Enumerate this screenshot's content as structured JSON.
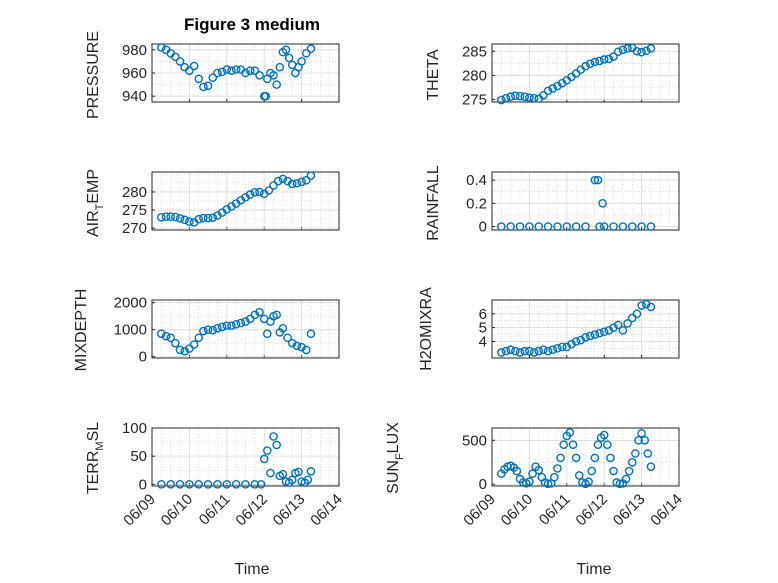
{
  "colors": {
    "marker": "#0072BD",
    "axis": "#262626"
  },
  "chart_data": [
    {
      "type": "scatter",
      "title": "Figure 3 medium",
      "ylabel": "PRESSURE",
      "xlabel": "",
      "xlim": [
        "06/09",
        "06/14"
      ],
      "ylim": [
        935,
        985
      ],
      "yticks": [
        940,
        960,
        980
      ],
      "grid": "on",
      "x": [
        "06/09 06:00",
        "06/09 09:00",
        "06/09 12:00",
        "06/09 15:00",
        "06/09 18:00",
        "06/09 21:00",
        "06/10 00:00",
        "06/10 03:00",
        "06/10 06:00",
        "06/10 09:00",
        "06/10 12:00",
        "06/10 15:00",
        "06/10 18:00",
        "06/10 21:00",
        "06/11 00:00",
        "06/11 03:00",
        "06/11 06:00",
        "06/11 09:00",
        "06/11 12:00",
        "06/11 15:00",
        "06/11 18:00",
        "06/11 21:00",
        "06/12 00:00",
        "06/12 01:00",
        "06/12 02:00",
        "06/12 04:00",
        "06/12 06:00",
        "06/12 08:00",
        "06/12 10:00",
        "06/12 12:00",
        "06/12 14:00",
        "06/12 16:00",
        "06/12 18:00",
        "06/12 20:00",
        "06/12 22:00",
        "06/13 00:00",
        "06/13 03:00",
        "06/13 06:00"
      ],
      "y": [
        982,
        980,
        977,
        974,
        970,
        965,
        962,
        966,
        955,
        948,
        949,
        956,
        960,
        961,
        963,
        962,
        963,
        963,
        960,
        962,
        962,
        958,
        940,
        940,
        955,
        960,
        958,
        950,
        965,
        978,
        980,
        973,
        967,
        960,
        965,
        970,
        977,
        981
      ]
    },
    {
      "type": "scatter",
      "title": "",
      "ylabel": "THETA",
      "xlabel": "",
      "xlim": [
        "06/09",
        "06/14"
      ],
      "ylim": [
        274.5,
        286.5
      ],
      "yticks": [
        275,
        280,
        285
      ],
      "grid": "on",
      "x": [
        "06/09 06:00",
        "06/09 09:00",
        "06/09 12:00",
        "06/09 15:00",
        "06/09 18:00",
        "06/09 21:00",
        "06/10 00:00",
        "06/10 03:00",
        "06/10 06:00",
        "06/10 09:00",
        "06/10 12:00",
        "06/10 15:00",
        "06/10 18:00",
        "06/10 21:00",
        "06/11 00:00",
        "06/11 03:00",
        "06/11 06:00",
        "06/11 09:00",
        "06/11 12:00",
        "06/11 15:00",
        "06/11 18:00",
        "06/11 21:00",
        "06/12 00:00",
        "06/12 03:00",
        "06/12 06:00",
        "06/12 09:00",
        "06/12 12:00",
        "06/12 15:00",
        "06/12 18:00",
        "06/12 21:00",
        "06/13 00:00",
        "06/13 03:00",
        "06/13 06:00"
      ],
      "y": [
        274.9,
        275.3,
        275.6,
        275.8,
        275.7,
        275.6,
        275.4,
        275.3,
        275.2,
        275.9,
        276.8,
        277.3,
        277.8,
        278.4,
        279.0,
        279.7,
        280.4,
        281.2,
        281.9,
        282.4,
        282.8,
        283.0,
        283.3,
        283.4,
        283.9,
        284.9,
        285.3,
        285.6,
        285.7,
        285.0,
        284.8,
        285.1,
        285.6
      ]
    },
    {
      "type": "scatter",
      "title": "",
      "ylabel": "AIR_TEMP",
      "xlabel": "",
      "xlim": [
        "06/09",
        "06/14"
      ],
      "ylim": [
        269.5,
        285.5
      ],
      "yticks": [
        270,
        275,
        280
      ],
      "grid": "on",
      "x": [
        "06/09 06:00",
        "06/09 09:00",
        "06/09 12:00",
        "06/09 15:00",
        "06/09 18:00",
        "06/09 21:00",
        "06/10 00:00",
        "06/10 03:00",
        "06/10 06:00",
        "06/10 09:00",
        "06/10 12:00",
        "06/10 15:00",
        "06/10 18:00",
        "06/10 21:00",
        "06/11 00:00",
        "06/11 03:00",
        "06/11 06:00",
        "06/11 09:00",
        "06/11 12:00",
        "06/11 15:00",
        "06/11 18:00",
        "06/11 21:00",
        "06/12 00:00",
        "06/12 03:00",
        "06/12 06:00",
        "06/12 09:00",
        "06/12 12:00",
        "06/12 15:00",
        "06/12 18:00",
        "06/12 21:00",
        "06/13 00:00",
        "06/13 03:00",
        "06/13 06:00"
      ],
      "y": [
        273.0,
        273.2,
        273.2,
        273.1,
        272.7,
        272.3,
        271.8,
        271.6,
        272.5,
        272.8,
        272.8,
        272.9,
        273.5,
        274.3,
        275.2,
        276.0,
        276.8,
        277.7,
        278.5,
        279.3,
        279.9,
        280.0,
        279.5,
        280.4,
        281.8,
        283.0,
        283.6,
        283.0,
        282.2,
        282.4,
        282.8,
        283.2,
        284.5
      ]
    },
    {
      "type": "scatter",
      "title": "",
      "ylabel": "RAINFALL",
      "xlabel": "",
      "xlim": [
        "06/09",
        "06/14"
      ],
      "ylim": [
        -0.03,
        0.47
      ],
      "yticks": [
        0,
        0.2,
        0.4
      ],
      "grid": "on",
      "x": [
        "06/09 06:00",
        "06/09 12:00",
        "06/09 18:00",
        "06/10 00:00",
        "06/10 06:00",
        "06/10 12:00",
        "06/10 18:00",
        "06/11 00:00",
        "06/11 06:00",
        "06/11 12:00",
        "06/11 18:00",
        "06/11 20:00",
        "06/11 21:00",
        "06/11 23:00",
        "06/12 00:00",
        "06/12 06:00",
        "06/12 12:00",
        "06/12 18:00",
        "06/13 00:00",
        "06/13 06:00"
      ],
      "y": [
        0,
        0,
        0,
        0,
        0,
        0,
        0,
        0,
        0,
        0,
        0.4,
        0.4,
        0,
        0.2,
        0,
        0,
        0,
        0,
        0,
        0
      ]
    },
    {
      "type": "scatter",
      "title": "",
      "ylabel": "MIXDEPTH",
      "xlabel": "",
      "xlim": [
        "06/09",
        "06/14"
      ],
      "ylim": [
        -50,
        2100
      ],
      "yticks": [
        0,
        1000,
        2000
      ],
      "grid": "on",
      "x": [
        "06/09 06:00",
        "06/09 09:00",
        "06/09 12:00",
        "06/09 15:00",
        "06/09 18:00",
        "06/09 21:00",
        "06/10 00:00",
        "06/10 03:00",
        "06/10 06:00",
        "06/10 09:00",
        "06/10 12:00",
        "06/10 15:00",
        "06/10 18:00",
        "06/10 21:00",
        "06/11 00:00",
        "06/11 03:00",
        "06/11 06:00",
        "06/11 09:00",
        "06/11 12:00",
        "06/11 15:00",
        "06/11 18:00",
        "06/11 21:00",
        "06/12 00:00",
        "06/12 02:00",
        "06/12 04:00",
        "06/12 06:00",
        "06/12 08:00",
        "06/12 10:00",
        "06/12 12:00",
        "06/12 15:00",
        "06/12 18:00",
        "06/12 21:00",
        "06/13 00:00",
        "06/13 03:00",
        "06/13 06:00"
      ],
      "y": [
        850,
        760,
        700,
        500,
        250,
        200,
        300,
        450,
        700,
        950,
        1000,
        980,
        1050,
        1100,
        1150,
        1150,
        1200,
        1250,
        1300,
        1400,
        1550,
        1650,
        1400,
        850,
        1300,
        1500,
        1550,
        900,
        1050,
        700,
        500,
        400,
        350,
        250,
        850
      ]
    },
    {
      "type": "scatter",
      "title": "",
      "ylabel": "H2OMIXRA",
      "xlabel": "",
      "xlim": [
        "06/09",
        "06/14"
      ],
      "ylim": [
        2.8,
        7.0
      ],
      "yticks": [
        4,
        5,
        6
      ],
      "grid": "on",
      "x": [
        "06/09 06:00",
        "06/09 09:00",
        "06/09 12:00",
        "06/09 15:00",
        "06/09 18:00",
        "06/09 21:00",
        "06/10 00:00",
        "06/10 03:00",
        "06/10 06:00",
        "06/10 09:00",
        "06/10 12:00",
        "06/10 15:00",
        "06/10 18:00",
        "06/10 21:00",
        "06/11 00:00",
        "06/11 03:00",
        "06/11 06:00",
        "06/11 09:00",
        "06/11 12:00",
        "06/11 15:00",
        "06/11 18:00",
        "06/11 21:00",
        "06/12 00:00",
        "06/12 03:00",
        "06/12 06:00",
        "06/12 09:00",
        "06/12 12:00",
        "06/12 15:00",
        "06/12 18:00",
        "06/12 21:00",
        "06/13 00:00",
        "06/13 03:00",
        "06/13 06:00"
      ],
      "y": [
        3.2,
        3.3,
        3.4,
        3.3,
        3.2,
        3.3,
        3.3,
        3.2,
        3.3,
        3.4,
        3.3,
        3.4,
        3.5,
        3.6,
        3.6,
        3.8,
        4.0,
        4.1,
        4.3,
        4.4,
        4.5,
        4.6,
        4.7,
        4.8,
        5.0,
        5.2,
        4.8,
        5.3,
        5.7,
        6.0,
        6.6,
        6.7,
        6.5
      ]
    },
    {
      "type": "scatter",
      "title": "",
      "ylabel": "TERR_MSL",
      "xlabel": "Time",
      "xlim": [
        "06/09",
        "06/14"
      ],
      "ylim": [
        -3,
        100
      ],
      "yticks": [
        0,
        50,
        100
      ],
      "grid": "on",
      "x": [
        "06/09 06:00",
        "06/09 12:00",
        "06/09 18:00",
        "06/10 00:00",
        "06/10 06:00",
        "06/10 12:00",
        "06/10 18:00",
        "06/11 00:00",
        "06/11 06:00",
        "06/11 12:00",
        "06/11 18:00",
        "06/11 22:00",
        "06/12 00:00",
        "06/12 02:00",
        "06/12 04:00",
        "06/12 06:00",
        "06/12 08:00",
        "06/12 10:00",
        "06/12 12:00",
        "06/12 14:00",
        "06/12 16:00",
        "06/12 18:00",
        "06/12 20:00",
        "06/12 22:00",
        "06/13 00:00",
        "06/13 02:00",
        "06/13 04:00",
        "06/13 06:00"
      ],
      "y": [
        0,
        0,
        0,
        0,
        0,
        0,
        0,
        0,
        0,
        0,
        0,
        0,
        45,
        60,
        20,
        85,
        70,
        15,
        18,
        5,
        3,
        8,
        20,
        22,
        5,
        3,
        8,
        23
      ]
    },
    {
      "type": "scatter",
      "title": "",
      "ylabel": "SUN_FLUX",
      "xlabel": "Time",
      "xlim": [
        "06/09",
        "06/14"
      ],
      "ylim": [
        -20,
        640
      ],
      "yticks": [
        0,
        500
      ],
      "grid": "on",
      "x": [
        "06/09 06:00",
        "06/09 08:00",
        "06/09 10:00",
        "06/09 12:00",
        "06/09 14:00",
        "06/09 16:00",
        "06/09 18:00",
        "06/09 20:00",
        "06/09 22:00",
        "06/10 00:00",
        "06/10 02:00",
        "06/10 04:00",
        "06/10 06:00",
        "06/10 08:00",
        "06/10 10:00",
        "06/10 12:00",
        "06/10 14:00",
        "06/10 16:00",
        "06/10 18:00",
        "06/10 20:00",
        "06/10 22:00",
        "06/11 00:00",
        "06/11 02:00",
        "06/11 04:00",
        "06/11 06:00",
        "06/11 08:00",
        "06/11 10:00",
        "06/11 12:00",
        "06/11 14:00",
        "06/11 16:00",
        "06/11 18:00",
        "06/11 20:00",
        "06/11 22:00",
        "06/12 00:00",
        "06/12 02:00",
        "06/12 04:00",
        "06/12 06:00",
        "06/12 08:00",
        "06/12 10:00",
        "06/12 12:00",
        "06/12 14:00",
        "06/12 16:00",
        "06/12 18:00",
        "06/12 20:00",
        "06/12 22:00",
        "06/13 00:00",
        "06/13 02:00",
        "06/13 04:00",
        "06/13 06:00"
      ],
      "y": [
        120,
        170,
        200,
        210,
        190,
        150,
        60,
        20,
        10,
        30,
        120,
        200,
        160,
        80,
        20,
        5,
        10,
        80,
        180,
        300,
        450,
        550,
        590,
        450,
        300,
        100,
        20,
        5,
        30,
        150,
        300,
        450,
        530,
        560,
        450,
        300,
        150,
        20,
        5,
        10,
        60,
        150,
        250,
        350,
        500,
        580,
        500,
        350,
        200
      ]
    }
  ],
  "x_tick_labels": [
    "06/09",
    "06/10",
    "06/11",
    "06/12",
    "06/13",
    "06/14"
  ]
}
